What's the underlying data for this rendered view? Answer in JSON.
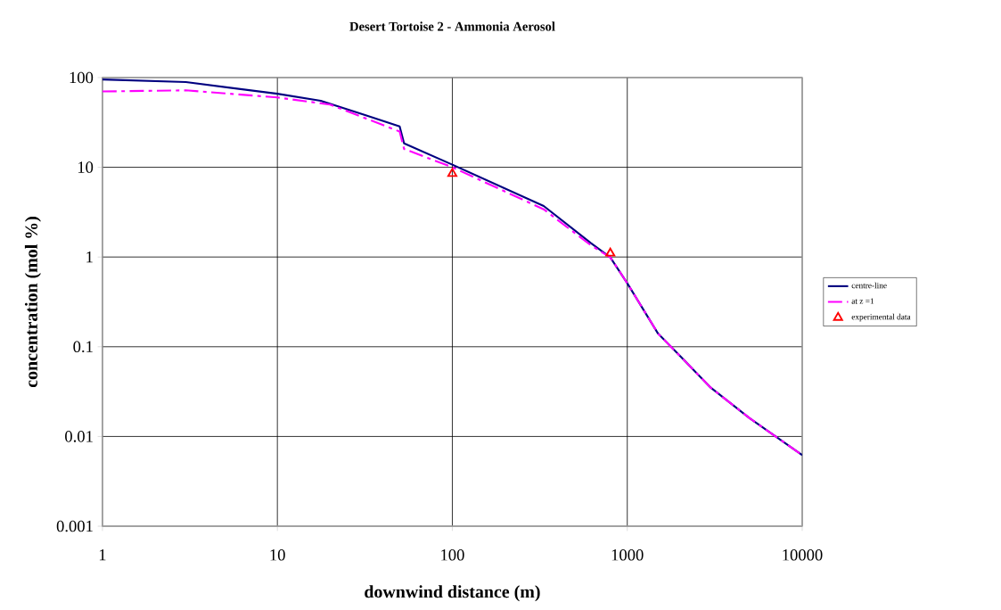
{
  "chart_data": {
    "type": "line",
    "title": "Desert Tortoise 2 - Ammonia Aerosol",
    "xlabel": "downwind distance (m)",
    "ylabel": "concentration (mol %)",
    "log": "xy",
    "grid": true,
    "legend": "right",
    "xlim": [
      1,
      10000
    ],
    "ylim": [
      0.001,
      100
    ],
    "xticks": [
      1,
      10,
      100,
      1000,
      10000
    ],
    "yticks": [
      0.001,
      0.01,
      0.1,
      1,
      10,
      100
    ],
    "series": [
      {
        "name": "centre-line",
        "color": "#000080",
        "line_style": "solid",
        "marker": "none",
        "x": [
          1,
          3,
          10,
          17.7,
          32,
          50,
          53,
          100,
          333,
          620,
          800,
          1000,
          1500,
          2000,
          3000,
          5000,
          10000
        ],
        "values": [
          95,
          89,
          66,
          55,
          38,
          28.6,
          18.5,
          10.7,
          3.7,
          1.43,
          0.99,
          0.51,
          0.14,
          0.079,
          0.035,
          0.016,
          0.0062
        ]
      },
      {
        "name": "at z =1",
        "color": "#ff00ff",
        "line_style": "dashdot",
        "marker": "none",
        "x": [
          1,
          3,
          10,
          20,
          32,
          50,
          53,
          100,
          333,
          620,
          800,
          1000,
          1500,
          2000,
          3000,
          5000,
          10000
        ],
        "values": [
          70,
          72,
          60,
          50,
          35,
          25,
          16,
          10,
          3.4,
          1.35,
          0.99,
          0.51,
          0.14,
          0.079,
          0.035,
          0.016,
          0.0062
        ]
      },
      {
        "name": "experimental data",
        "type": "scatter",
        "color": "#ff0000",
        "marker": "triangle",
        "x": [
          100,
          800
        ],
        "values": [
          8.5,
          1.1
        ]
      }
    ]
  }
}
